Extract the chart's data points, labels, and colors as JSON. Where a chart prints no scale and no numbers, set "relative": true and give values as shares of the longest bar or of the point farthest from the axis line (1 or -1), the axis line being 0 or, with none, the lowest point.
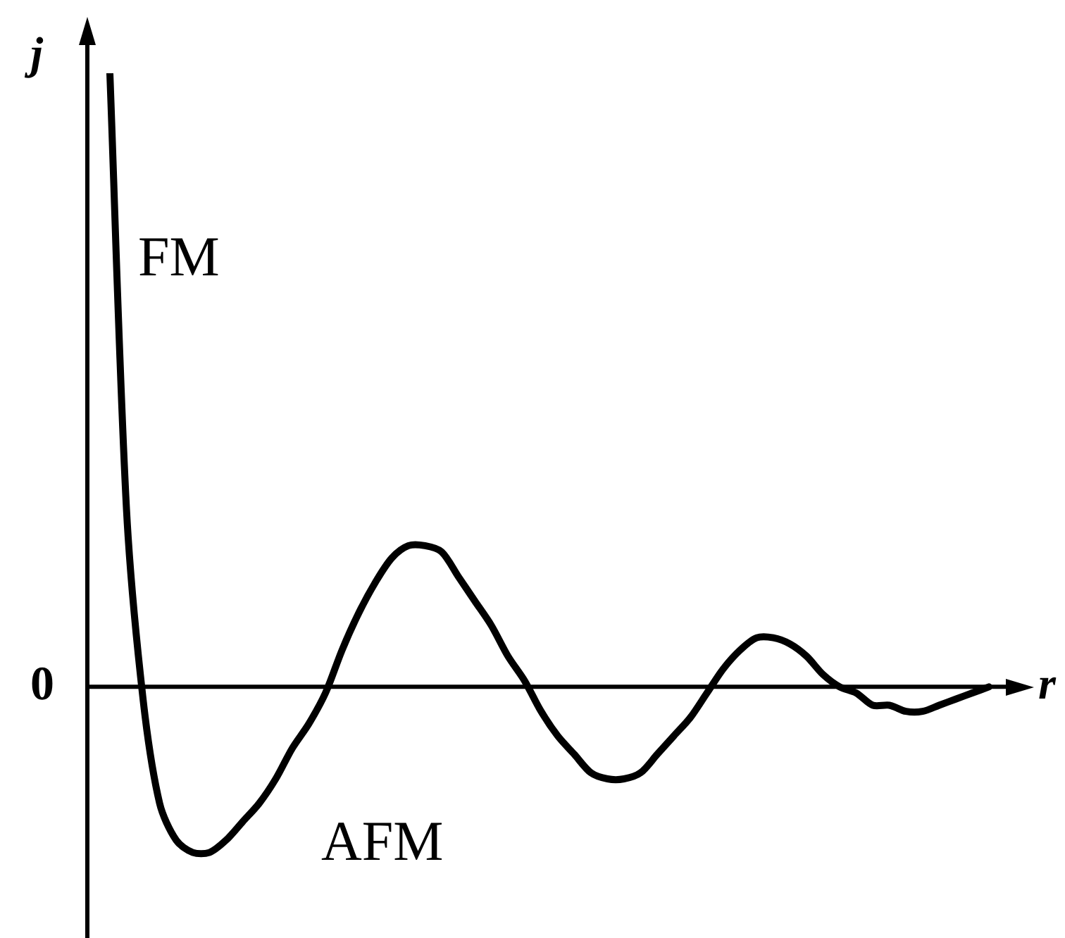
{
  "chart_data": {
    "type": "line",
    "relative": true,
    "ylabel": "j",
    "xlabel": "r",
    "color": "#000000",
    "marker": "none",
    "legend": false,
    "categories": [
      null,
      null,
      null,
      null,
      null,
      null,
      null,
      null,
      null,
      null,
      null,
      null,
      null,
      null,
      null,
      null,
      null,
      null,
      null,
      null,
      null,
      null,
      null,
      null,
      null,
      null,
      null,
      null,
      null,
      null,
      null,
      null,
      null,
      null,
      null,
      null,
      null,
      null,
      null,
      null,
      null,
      null,
      null,
      null,
      null,
      null,
      null,
      null,
      null,
      null,
      null,
      null,
      null,
      null
    ],
    "values": [
      1,
      0.29,
      -0.02,
      -0.19,
      -0.25,
      -0.27,
      -0.27,
      -0.25,
      -0.22,
      -0.19,
      -0.15,
      -0.1,
      -0.06,
      -0.01,
      0.06,
      0.12,
      0.17,
      0.21,
      0.23,
      0.23,
      0.22,
      0.18,
      0.14,
      0.1,
      0.05,
      0.01,
      -0.04,
      -0.08,
      -0.11,
      -0.14,
      -0.15,
      -0.15,
      -0.14,
      -0.11,
      -0.08,
      -0.05,
      -0.01,
      0.03,
      0.06,
      0.08,
      0.08,
      0.07,
      0.05,
      0.02,
      0,
      -0.01,
      -0.03,
      -0.03,
      -0.04,
      -0.04,
      -0.03,
      -0.02,
      -0.01,
      0
    ],
    "ref_lines": [
      {
        "axis": "y",
        "value": 0,
        "label": "0"
      }
    ],
    "annotations": [
      "FM",
      "AFM"
    ]
  }
}
